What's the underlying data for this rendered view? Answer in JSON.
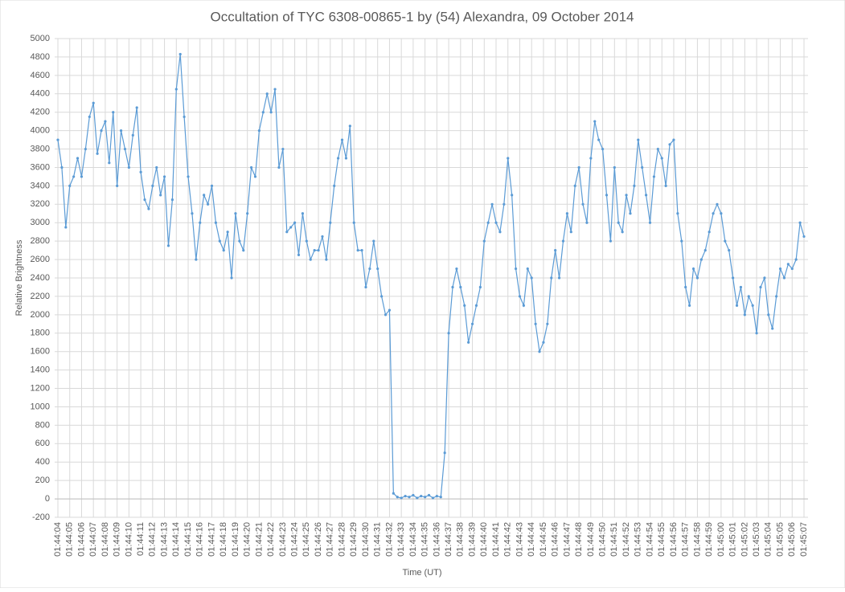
{
  "chart_data": {
    "type": "line",
    "title": "Occultation of TYC 6308-00865-1 by (54) Alexandra, 09 October 2014",
    "x_label": "Time (UT)",
    "y_label": "Relative Brightness",
    "color": "#5b9bd5",
    "grid": true,
    "ylim": [
      -200,
      5000
    ],
    "yticks": [
      -200,
      0,
      200,
      400,
      600,
      800,
      1000,
      1200,
      1400,
      1600,
      1800,
      2000,
      2200,
      2400,
      2600,
      2800,
      3000,
      3200,
      3400,
      3600,
      3800,
      4000,
      4200,
      4400,
      4600,
      4800,
      5000
    ],
    "categories": [
      "01:44:04",
      null,
      null,
      "01:44:05",
      null,
      null,
      "01:44:06",
      null,
      null,
      "01:44:07",
      null,
      null,
      "01:44:08",
      null,
      null,
      "01:44:09",
      null,
      null,
      "01:44:10",
      null,
      null,
      "01:44:11",
      null,
      null,
      "01:44:12",
      null,
      null,
      "01:44:13",
      null,
      null,
      "01:44:14",
      null,
      null,
      "01:44:15",
      null,
      null,
      "01:44:16",
      null,
      null,
      "01:44:17",
      null,
      null,
      "01:44:18",
      null,
      null,
      "01:44:19",
      null,
      null,
      "01:44:20",
      null,
      null,
      "01:44:21",
      null,
      null,
      "01:44:22",
      null,
      null,
      "01:44:23",
      null,
      null,
      "01:44:24",
      null,
      null,
      "01:44:25",
      null,
      null,
      "01:44:26",
      null,
      null,
      "01:44:27",
      null,
      null,
      "01:44:28",
      null,
      null,
      "01:44:29",
      null,
      null,
      "01:44:30",
      null,
      null,
      "01:44:31",
      null,
      null,
      "01:44:32",
      null,
      null,
      "01:44:33",
      null,
      null,
      "01:44:34",
      null,
      null,
      "01:44:35",
      null,
      null,
      "01:44:36",
      null,
      null,
      "01:44:37",
      null,
      null,
      "01:44:38",
      null,
      null,
      "01:44:39",
      null,
      null,
      "01:44:40",
      null,
      null,
      "01:44:41",
      null,
      null,
      "01:44:42",
      null,
      null,
      "01:44:43",
      null,
      null,
      "01:44:44",
      null,
      null,
      "01:44:45",
      null,
      null,
      "01:44:46",
      null,
      null,
      "01:44:47",
      null,
      null,
      "01:44:48",
      null,
      null,
      "01:44:49",
      null,
      null,
      "01:44:50",
      null,
      null,
      "01:44:51",
      null,
      null,
      "01:44:52",
      null,
      null,
      "01:44:53",
      null,
      null,
      "01:44:54",
      null,
      null,
      "01:44:55",
      null,
      null,
      "01:44:56",
      null,
      null,
      "01:44:57",
      null,
      null,
      "01:44:58",
      null,
      null,
      "01:44:59",
      null,
      null,
      "01:45:00",
      null,
      null,
      "01:45:01",
      null,
      null,
      "01:45:02",
      null,
      null,
      "01:45:03",
      null,
      null,
      "01:45:04",
      null,
      null,
      "01:45:05",
      null,
      null,
      "01:45:06",
      null,
      null,
      "01:45:07"
    ],
    "values": [
      3900,
      3600,
      2950,
      3400,
      3500,
      3700,
      3500,
      3800,
      4150,
      4300,
      3750,
      4000,
      4100,
      3650,
      4200,
      3400,
      4000,
      3800,
      3600,
      3950,
      4250,
      3550,
      3250,
      3150,
      3400,
      3600,
      3300,
      3500,
      2750,
      3250,
      4450,
      4830,
      4150,
      3500,
      3100,
      2600,
      3000,
      3300,
      3200,
      3400,
      3000,
      2800,
      2700,
      2900,
      2400,
      3100,
      2800,
      2700,
      3100,
      3600,
      3500,
      4000,
      4200,
      4400,
      4200,
      4450,
      3600,
      3800,
      2900,
      2950,
      3000,
      2650,
      3100,
      2800,
      2600,
      2700,
      2700,
      2850,
      2600,
      3000,
      3400,
      3700,
      3900,
      3700,
      4050,
      3000,
      2700,
      2700,
      2300,
      2500,
      2800,
      2500,
      2200,
      2000,
      2050,
      60,
      20,
      10,
      30,
      20,
      40,
      10,
      30,
      20,
      40,
      10,
      30,
      20,
      500,
      1800,
      2300,
      2500,
      2300,
      2100,
      1700,
      1900,
      2100,
      2300,
      2800,
      3000,
      3200,
      3000,
      2900,
      3200,
      3700,
      3300,
      2500,
      2200,
      2100,
      2500,
      2400,
      1900,
      1600,
      1700,
      1900,
      2400,
      2700,
      2400,
      2800,
      3100,
      2900,
      3400,
      3600,
      3200,
      3000,
      3700,
      4100,
      3900,
      3800,
      3300,
      2800,
      3600,
      3000,
      2900,
      3300,
      3100,
      3400,
      3900,
      3600,
      3300,
      3000,
      3500,
      3800,
      3700,
      3400,
      3850,
      3900,
      3100,
      2800,
      2300,
      2100,
      2500,
      2400,
      2600,
      2700,
      2900,
      3100,
      3200,
      3100,
      2800,
      2700,
      2400,
      2100,
      2300,
      2000,
      2200,
      2100,
      1800,
      2300,
      2400,
      2000,
      1850,
      2200,
      2500,
      2400,
      2550,
      2500,
      2600,
      3000,
      2850
    ]
  }
}
